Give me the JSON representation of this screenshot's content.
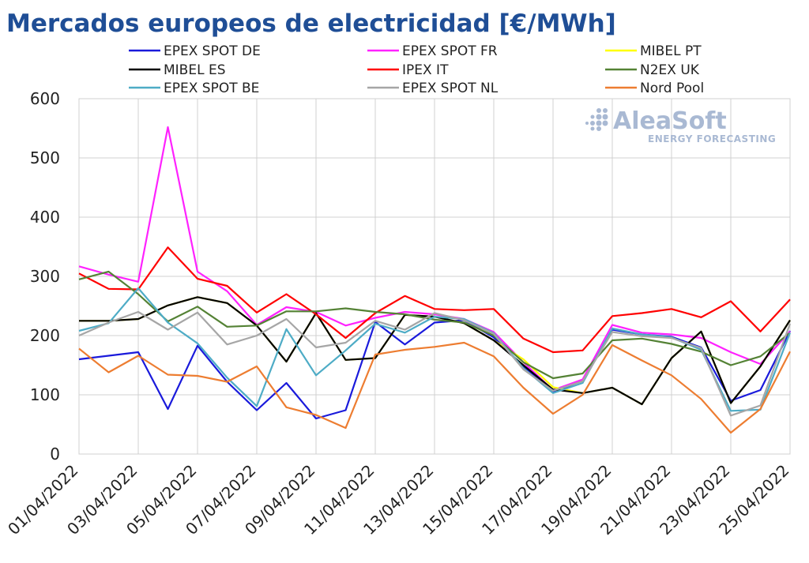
{
  "chart_data": {
    "type": "line",
    "title": "Mercados europeos de electricidad [€/MWh]",
    "ylim": [
      0,
      600
    ],
    "yticks": [
      0,
      100,
      200,
      300,
      400,
      500,
      600
    ],
    "grid": true,
    "legend_position": "top",
    "categories": [
      "01/04/2022",
      "02/04/2022",
      "03/04/2022",
      "04/04/2022",
      "05/04/2022",
      "06/04/2022",
      "07/04/2022",
      "08/04/2022",
      "09/04/2022",
      "10/04/2022",
      "11/04/2022",
      "12/04/2022",
      "13/04/2022",
      "14/04/2022",
      "15/04/2022",
      "16/04/2022",
      "17/04/2022",
      "18/04/2022",
      "19/04/2022",
      "20/04/2022",
      "21/04/2022",
      "22/04/2022",
      "23/04/2022",
      "24/04/2022",
      "25/04/2022"
    ],
    "xtick_labels": [
      "01/04/2022",
      "03/04/2022",
      "05/04/2022",
      "07/04/2022",
      "09/04/2022",
      "11/04/2022",
      "13/04/2022",
      "15/04/2022",
      "17/04/2022",
      "19/04/2022",
      "21/04/2022",
      "23/04/2022",
      "25/04/2022"
    ],
    "series": [
      {
        "name": "EPEX SPOT DE",
        "color": "#1a1adb",
        "values": [
          160,
          166,
          172,
          76,
          183,
          122,
          74,
          120,
          60,
          74,
          223,
          185,
          222,
          226,
          197,
          148,
          104,
          124,
          210,
          202,
          198,
          180,
          90,
          108,
          208
        ]
      },
      {
        "name": "EPEX SPOT FR",
        "color": "#ff22ff",
        "values": [
          317,
          303,
          291,
          552,
          308,
          275,
          218,
          248,
          240,
          217,
          230,
          240,
          236,
          228,
          206,
          155,
          108,
          126,
          218,
          205,
          202,
          196,
          172,
          152,
          207
        ]
      },
      {
        "name": "MIBEL PT",
        "color": "#ffff00",
        "values": [
          225,
          225,
          228,
          251,
          265,
          255,
          217,
          156,
          238,
          159,
          162,
          235,
          232,
          221,
          192,
          160,
          113,
          103,
          112,
          84,
          162,
          207,
          86,
          148,
          226
        ]
      },
      {
        "name": "MIBEL ES",
        "color": "#000000",
        "values": [
          225,
          225,
          228,
          251,
          265,
          255,
          217,
          156,
          238,
          159,
          162,
          235,
          232,
          221,
          192,
          150,
          109,
          103,
          112,
          84,
          162,
          207,
          86,
          148,
          226
        ]
      },
      {
        "name": "IPEX IT",
        "color": "#ff0000",
        "values": [
          305,
          279,
          278,
          349,
          296,
          284,
          239,
          270,
          236,
          196,
          238,
          267,
          245,
          243,
          245,
          195,
          172,
          175,
          233,
          238,
          245,
          231,
          258,
          207,
          261
        ]
      },
      {
        "name": "N2EX UK",
        "color": "#548235",
        "values": [
          295,
          308,
          270,
          224,
          249,
          215,
          217,
          241,
          241,
          246,
          240,
          236,
          227,
          222,
          200,
          155,
          128,
          136,
          192,
          195,
          186,
          173,
          150,
          165,
          205
        ]
      },
      {
        "name": "EPEX SPOT BE",
        "color": "#4eacc6",
        "values": [
          208,
          221,
          280,
          222,
          187,
          129,
          81,
          211,
          133,
          175,
          220,
          205,
          232,
          228,
          204,
          145,
          103,
          120,
          212,
          202,
          197,
          176,
          73,
          75,
          205
        ]
      },
      {
        "name": "EPEX SPOT NL",
        "color": "#a6a6a6",
        "values": [
          200,
          222,
          240,
          210,
          239,
          185,
          200,
          228,
          180,
          188,
          225,
          210,
          238,
          226,
          203,
          143,
          107,
          123,
          206,
          199,
          196,
          179,
          65,
          82,
          220
        ]
      },
      {
        "name": "Nord Pool",
        "color": "#ed7d31",
        "values": [
          178,
          138,
          166,
          134,
          132,
          122,
          148,
          79,
          66,
          44,
          168,
          176,
          181,
          188,
          165,
          112,
          68,
          100,
          184,
          158,
          133,
          93,
          36,
          76,
          173
        ]
      }
    ]
  },
  "watermark": {
    "brand": "AleaSoft",
    "tagline": "ENERGY FORECASTING",
    "icon": "dots-logo-icon",
    "color": "#a9b9d3"
  }
}
